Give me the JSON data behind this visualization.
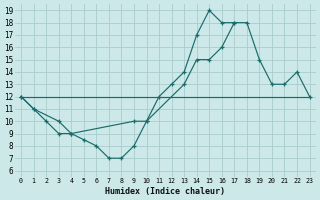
{
  "xlabel": "Humidex (Indice chaleur)",
  "bg_color": "#cce8e8",
  "grid_color": "#aacccc",
  "line_color": "#1a6b6b",
  "xlim": [
    -0.5,
    23.5
  ],
  "ylim": [
    5.5,
    19.5
  ],
  "xticks": [
    0,
    1,
    2,
    3,
    4,
    5,
    6,
    7,
    8,
    9,
    10,
    11,
    12,
    13,
    14,
    15,
    16,
    17,
    18,
    19,
    20,
    21,
    22,
    23
  ],
  "yticks": [
    6,
    7,
    8,
    9,
    10,
    11,
    12,
    13,
    14,
    15,
    16,
    17,
    18,
    19
  ],
  "line1_x": [
    0,
    1,
    2,
    3,
    4,
    5,
    6,
    7,
    8,
    9,
    10,
    11,
    12,
    13,
    14,
    15,
    16,
    17
  ],
  "line1_y": [
    12,
    11,
    10,
    9,
    9,
    8.5,
    8,
    7,
    7,
    8,
    10,
    12,
    13,
    14,
    17,
    19,
    18,
    18
  ],
  "line2_x": [
    0,
    1,
    3,
    4,
    9,
    10,
    13,
    14,
    15,
    16,
    17,
    18,
    19,
    20,
    21,
    22,
    23
  ],
  "line2_y": [
    12,
    11,
    10,
    9,
    10,
    10,
    13,
    15,
    15,
    16,
    18,
    18,
    15,
    13,
    13,
    14,
    12
  ],
  "line3_x": [
    0,
    23
  ],
  "line3_y": [
    12,
    12
  ]
}
